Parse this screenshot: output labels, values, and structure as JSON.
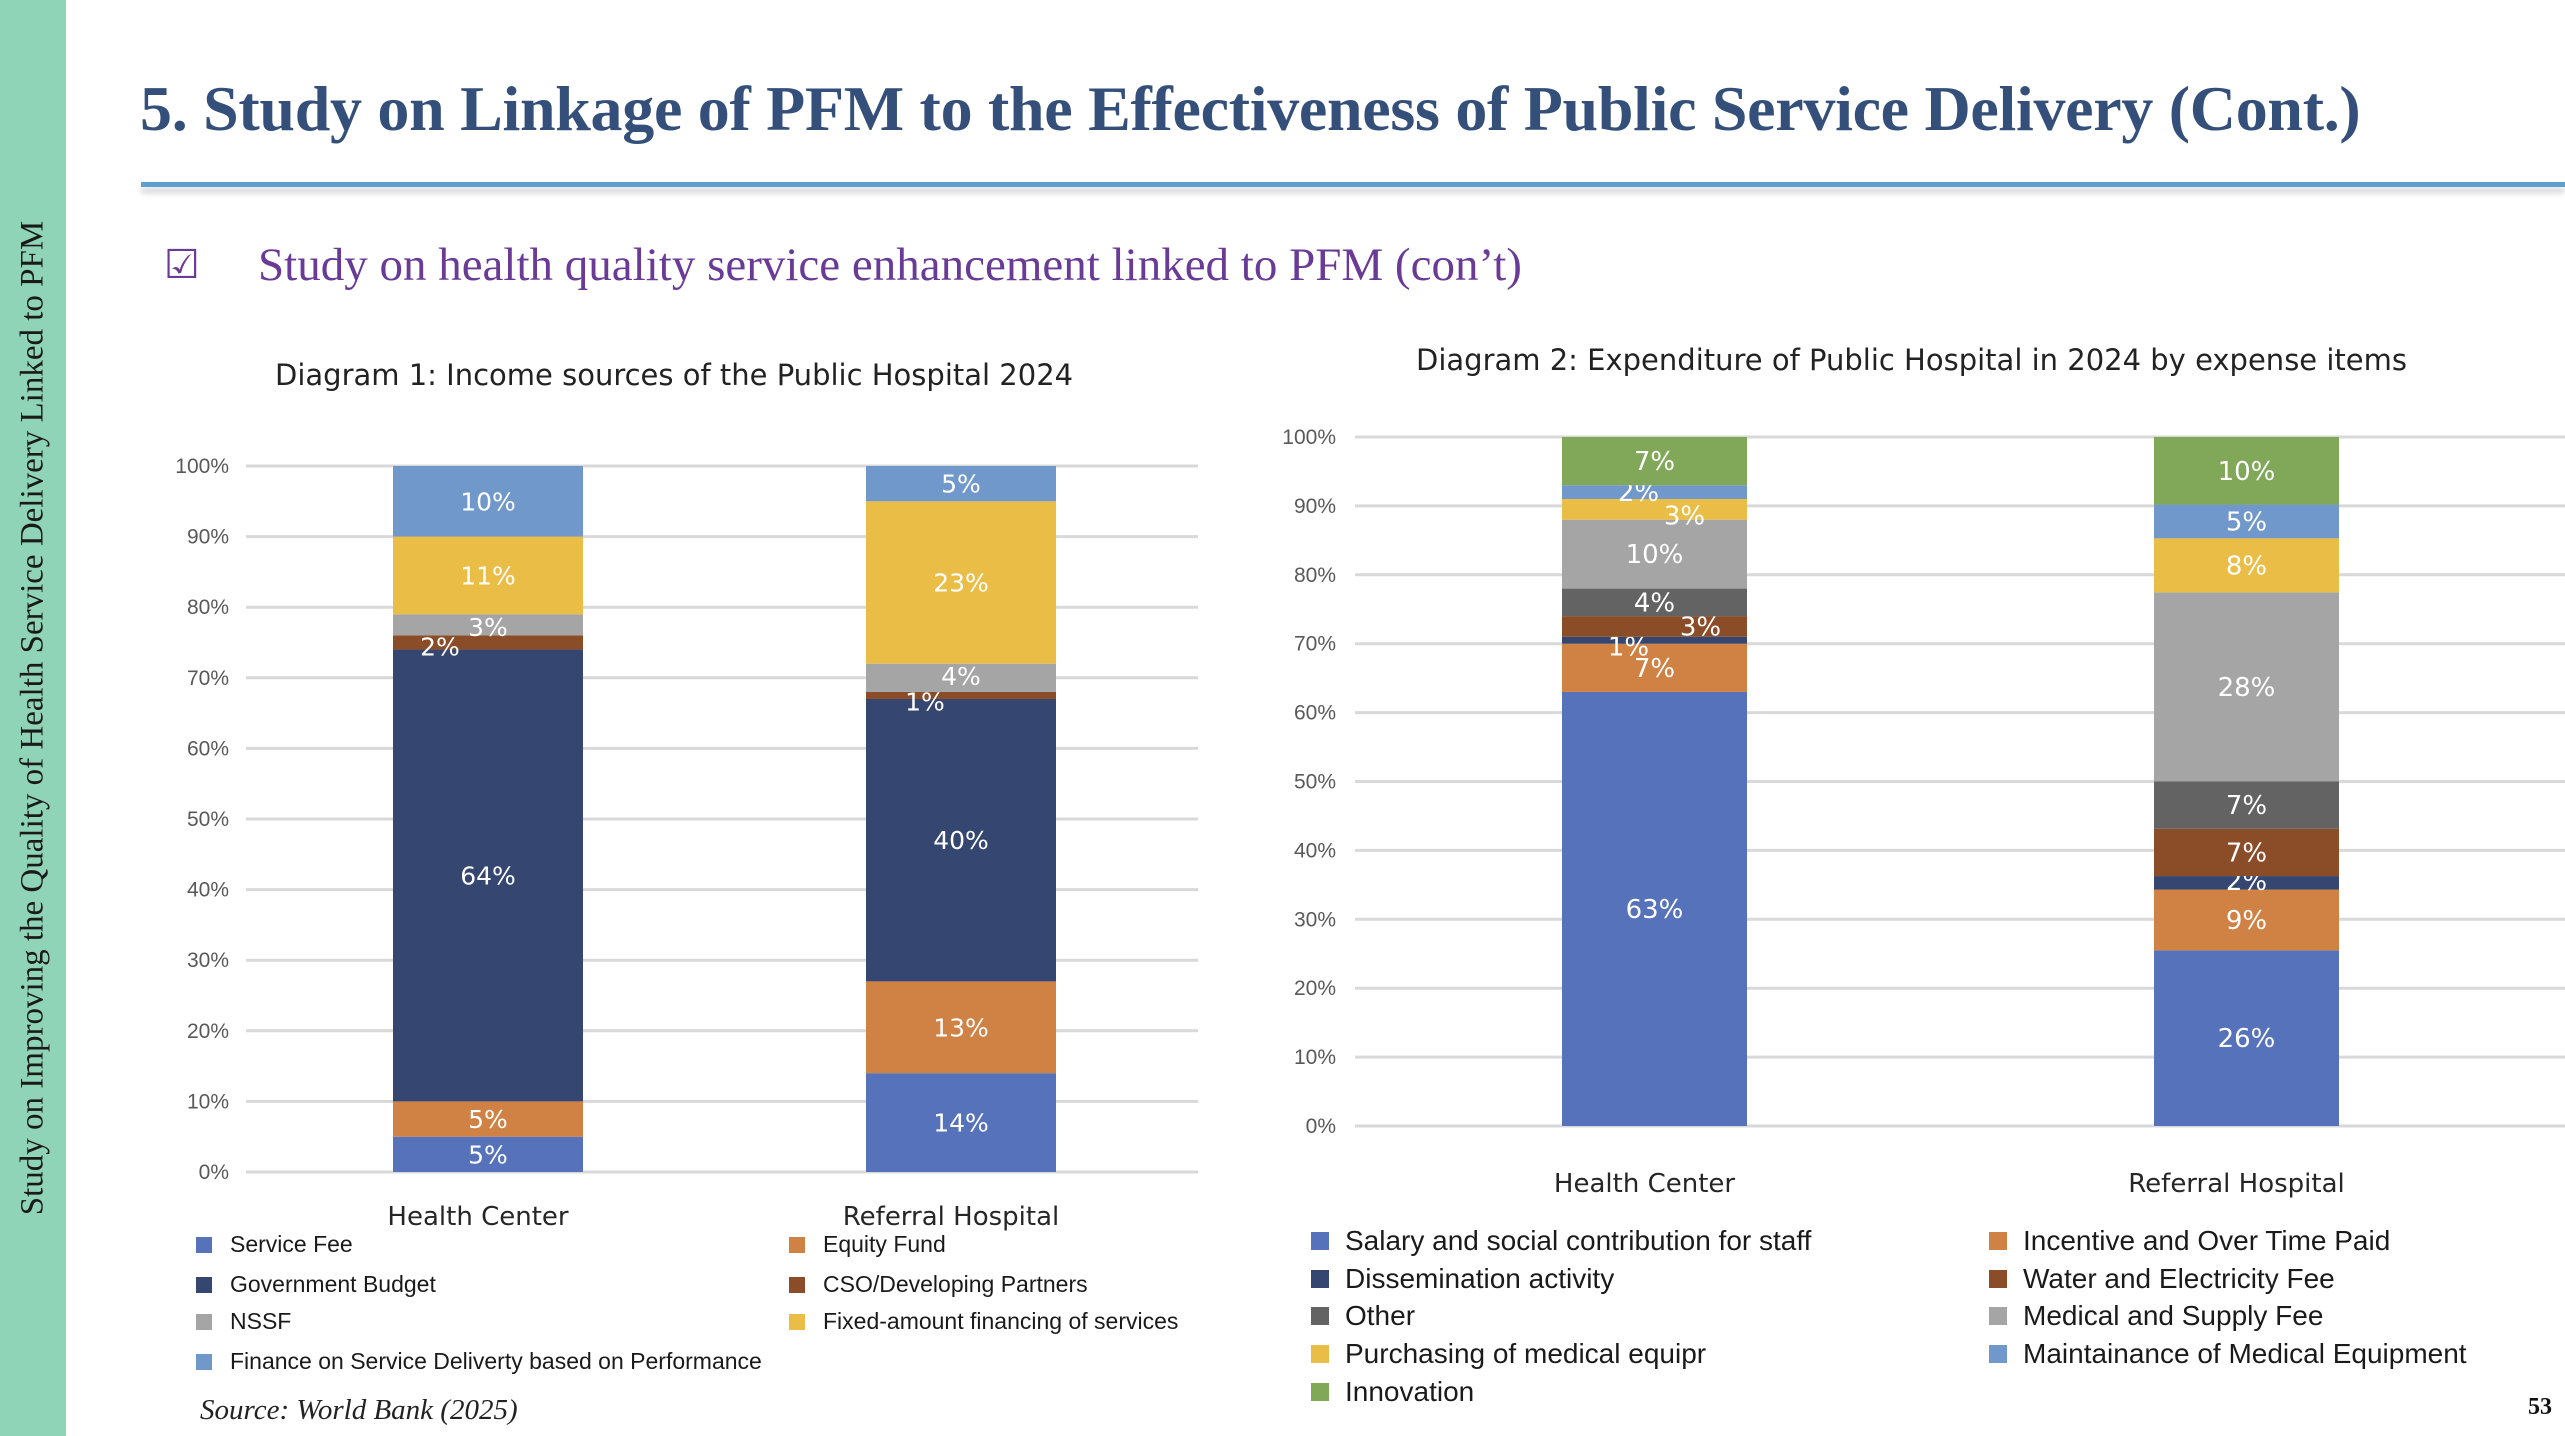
{
  "sidebar": {
    "text": "Study on Improving the Quality of Health Service Delivery Linked to PFM"
  },
  "header": {
    "title": "5. Study on Linkage of PFM to the Effectiveness of Public Service Delivery (Cont.)"
  },
  "bullet": {
    "icon": "checkbox-checked-icon",
    "glyph": "☑",
    "text": "Study on health quality service enhancement linked to PFM (con’t)"
  },
  "source": "Source: World Bank (2025)",
  "page_number": "53",
  "chart_data": [
    {
      "type": "bar",
      "stacked": true,
      "percent": true,
      "title": "Diagram 1: Income sources of the Public Hospital 2024",
      "xlabel": "",
      "ylabel": "",
      "ylim": [
        0,
        100
      ],
      "yticks": [
        "0%",
        "10%",
        "20%",
        "30%",
        "40%",
        "50%",
        "60%",
        "70%",
        "80%",
        "90%",
        "100%"
      ],
      "grid": true,
      "legend_position": "bottom",
      "categories": [
        "Health Center",
        "Referral Hospital"
      ],
      "series": [
        {
          "name": "Service Fee",
          "color": "#5672ba",
          "values": [
            5,
            14
          ],
          "labels": [
            "5%",
            "14%"
          ]
        },
        {
          "name": "Equity Fund",
          "color": "#d08144",
          "values": [
            5,
            13
          ],
          "labels": [
            "5%",
            "13%"
          ]
        },
        {
          "name": "Government Budget",
          "color": "#354771",
          "values": [
            64,
            40
          ],
          "labels": [
            "64%",
            "40%"
          ]
        },
        {
          "name": "CSO/Developing Partners",
          "color": "#8b4c28",
          "values": [
            2,
            1
          ],
          "labels": [
            "2%",
            "1%"
          ]
        },
        {
          "name": "NSSF",
          "color": "#a5a5a5",
          "values": [
            3,
            4
          ],
          "labels": [
            "3%",
            "4%"
          ]
        },
        {
          "name": "Fixed-amount financing of services",
          "color": "#eabd46",
          "values": [
            11,
            23
          ],
          "labels": [
            "11%",
            "23%"
          ]
        },
        {
          "name": "Finance on Service Deliverty based on Performance",
          "color": "#7198cb",
          "values": [
            10,
            5
          ],
          "labels": [
            "10%",
            "5%"
          ]
        }
      ],
      "legend": [
        {
          "name": "Service Fee",
          "color": "#5672ba"
        },
        {
          "name": "Equity Fund",
          "color": "#d08144"
        },
        {
          "name": "Government Budget",
          "color": "#354771"
        },
        {
          "name": "CSO/Developing Partners",
          "color": "#8b4c28"
        },
        {
          "name": "NSSF",
          "color": "#a5a5a5"
        },
        {
          "name": "Fixed-amount financing of services",
          "color": "#eabd46"
        },
        {
          "name": "Finance on Service Deliverty based on Performance",
          "color": "#7198cb"
        }
      ]
    },
    {
      "type": "bar",
      "stacked": true,
      "percent": true,
      "title": "Diagram 2: Expenditure of Public Hospital in 2024 by expense items",
      "xlabel": "",
      "ylabel": "",
      "ylim": [
        0,
        100
      ],
      "yticks": [
        "0%",
        "10%",
        "20%",
        "30%",
        "40%",
        "50%",
        "60%",
        "70%",
        "80%",
        "90%",
        "100%"
      ],
      "grid": true,
      "legend_position": "bottom",
      "categories": [
        "Health Center",
        "Referral Hospital"
      ],
      "series": [
        {
          "name": "Salary and social contribution for staff",
          "color": "#5672ba",
          "values": [
            63,
            26
          ],
          "labels": [
            "63%",
            "26%"
          ]
        },
        {
          "name": "Incentive and Over Time Paid",
          "color": "#d08144",
          "values": [
            7,
            9
          ],
          "labels": [
            "7%",
            "9%"
          ]
        },
        {
          "name": "Dissemination activity",
          "color": "#354771",
          "values": [
            1,
            2
          ],
          "labels": [
            "1%",
            "2%"
          ]
        },
        {
          "name": "Water and Electricity Fee",
          "color": "#8b4c28",
          "values": [
            3,
            7
          ],
          "labels": [
            "3%",
            "7%"
          ]
        },
        {
          "name": "Other",
          "color": "#636363",
          "values": [
            4,
            7
          ],
          "labels": [
            "4%",
            "7%"
          ]
        },
        {
          "name": "Medical and Supply Fee",
          "color": "#a5a5a5",
          "values": [
            10,
            28
          ],
          "labels": [
            "10%",
            "28%"
          ]
        },
        {
          "name": "Purchasing of medical equipment",
          "color": "#eabd46",
          "values": [
            3,
            8
          ],
          "labels": [
            "3%",
            "8%"
          ]
        },
        {
          "name": "Maintainance of Medical Equipment",
          "color": "#7198cb",
          "values": [
            2,
            5
          ],
          "labels": [
            "2%",
            "5%"
          ]
        },
        {
          "name": "Innovation",
          "color": "#80a858",
          "values": [
            7,
            10
          ],
          "labels": [
            "7%",
            "10%"
          ]
        }
      ],
      "legend": [
        {
          "name": "Salary and social contribution for staff",
          "color": "#5672ba"
        },
        {
          "name": "Incentive and Over Time Paid",
          "color": "#d08144"
        },
        {
          "name": "Dissemination activity",
          "color": "#354771"
        },
        {
          "name": "Water and Electricity Fee",
          "color": "#8b4c28"
        },
        {
          "name": "Other",
          "color": "#636363"
        },
        {
          "name": "Medical and Supply Fee",
          "color": "#a5a5a5"
        },
        {
          "name": "Purchasing of medical equipr",
          "color": "#eabd46"
        },
        {
          "name": "Maintainance of Medical Equipment",
          "color": "#7198cb"
        },
        {
          "name": "Innovation",
          "color": "#80a858"
        }
      ]
    }
  ]
}
